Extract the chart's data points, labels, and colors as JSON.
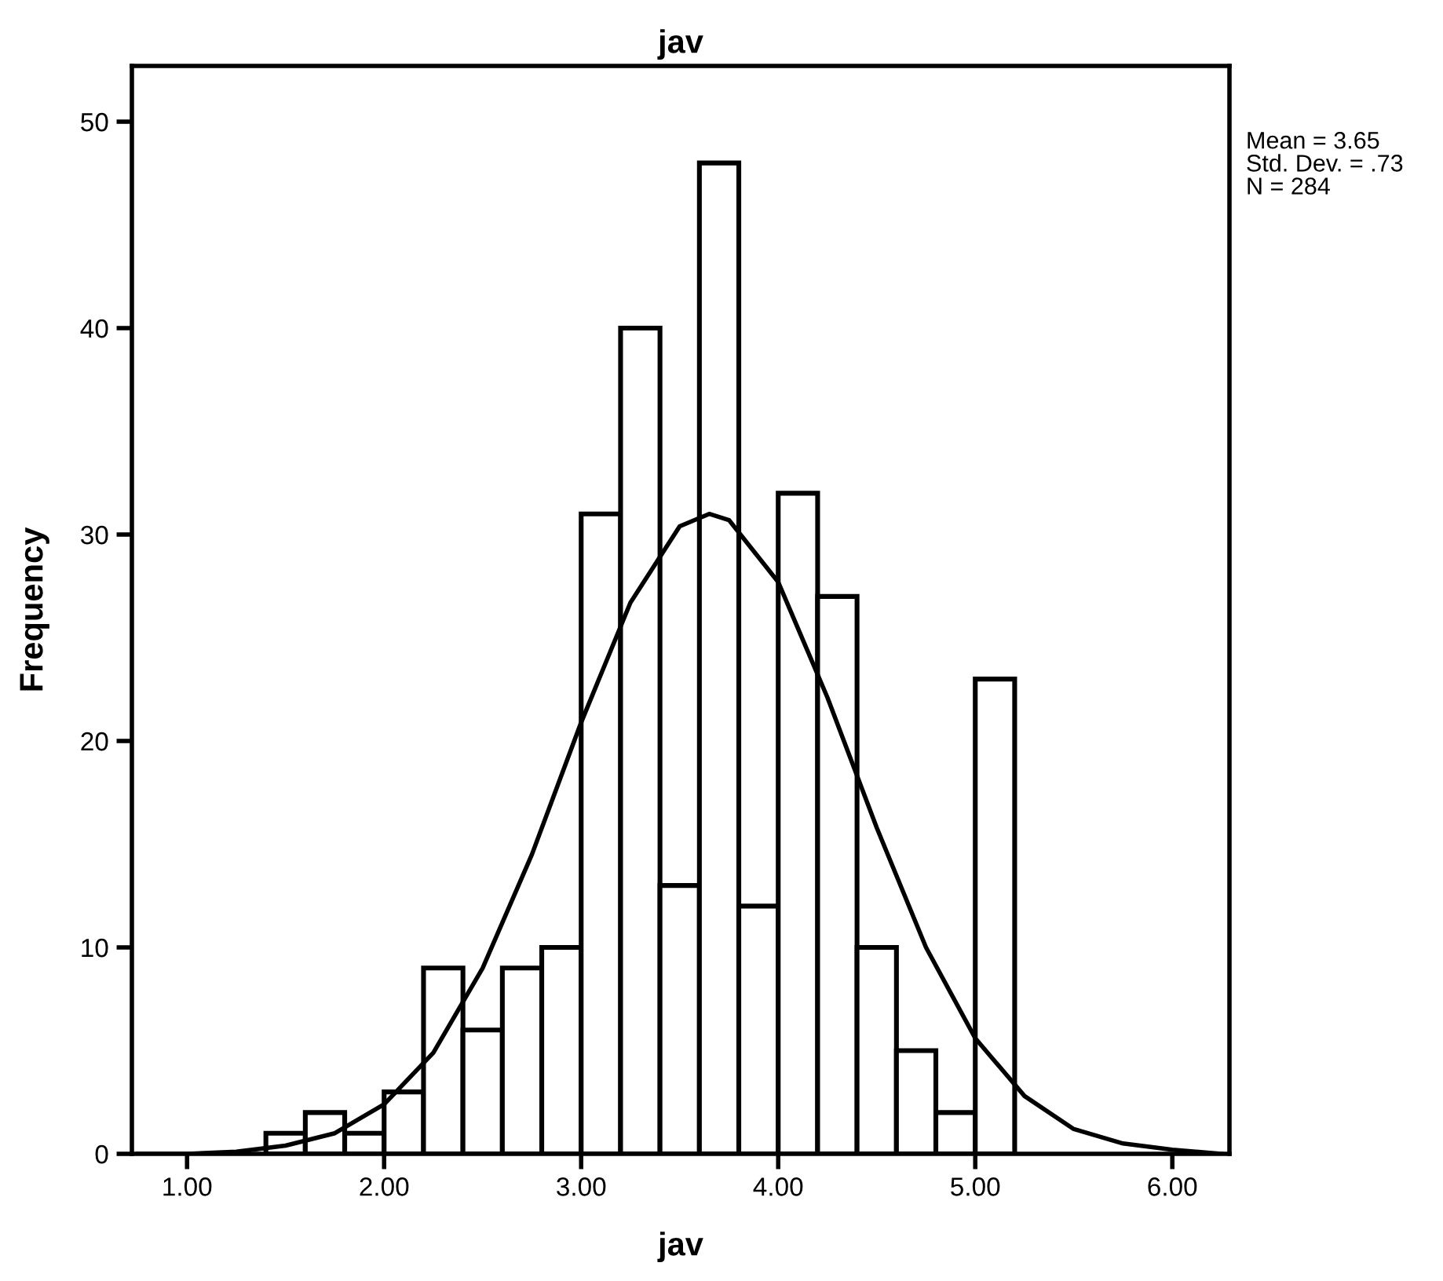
{
  "chart_data": {
    "type": "histogram",
    "title": "jav",
    "xlabel": "jav",
    "ylabel": "Frequency",
    "bins": [
      1.4,
      1.6,
      1.8,
      2.0,
      2.2,
      2.4,
      2.6,
      2.8,
      3.0,
      3.2,
      3.4,
      3.6,
      3.8,
      4.0,
      4.2,
      4.4,
      4.6,
      4.8,
      5.0,
      5.2
    ],
    "values": [
      1,
      2,
      1,
      3,
      9,
      6,
      9,
      10,
      31,
      40,
      13,
      48,
      12,
      32,
      27,
      10,
      5,
      2,
      23
    ],
    "color": "#ffffff",
    "series": [
      {
        "type": "line",
        "color": "#000000",
        "x": [
          0.75,
          1.0,
          1.25,
          1.5,
          1.75,
          2.0,
          2.25,
          2.5,
          2.75,
          3.0,
          3.25,
          3.5,
          3.65,
          3.75,
          4.0,
          4.25,
          4.5,
          4.75,
          5.0,
          5.25,
          5.5,
          5.75,
          6.0,
          6.25
        ],
        "values": [
          0.0,
          0.0,
          0.1,
          0.4,
          1.0,
          2.4,
          4.9,
          9.0,
          14.5,
          20.9,
          26.7,
          30.4,
          31.0,
          30.7,
          27.7,
          22.1,
          15.8,
          10.0,
          5.6,
          2.8,
          1.2,
          0.5,
          0.2,
          0.0
        ]
      }
    ],
    "xlim": [
      0.72,
      6.29
    ],
    "xticks": [
      {
        "value": 1,
        "label": "1.00"
      },
      {
        "value": 2,
        "label": "2.00"
      },
      {
        "value": 3,
        "label": "3.00"
      },
      {
        "value": 4,
        "label": "4.00"
      },
      {
        "value": 5,
        "label": "5.00"
      },
      {
        "value": 6,
        "label": "6.00"
      }
    ],
    "ylim": [
      0,
      52.7
    ],
    "yticks": [
      0,
      10,
      20,
      30,
      40,
      50
    ],
    "annotations": [
      "Mean = 3.65",
      "Std. Dev. = .73",
      "N = 284"
    ]
  }
}
